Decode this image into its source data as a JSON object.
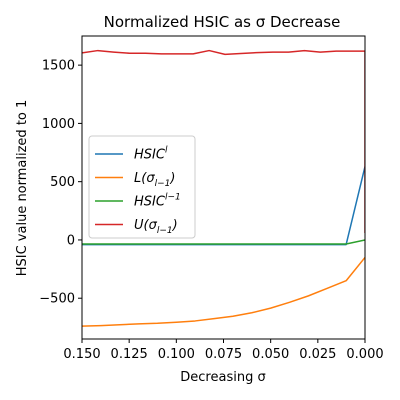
{
  "chart_data": {
    "type": "line",
    "title": "Normalized HSIC as σ Decrease",
    "xlabel": "Decreasing σ",
    "ylabel": "HSIC value normalized to 1",
    "xlim": [
      0.15,
      0.0
    ],
    "ylim": [
      -850,
      1750
    ],
    "x_reversed": true,
    "xticks": [
      0.15,
      0.125,
      0.1,
      0.075,
      0.05,
      0.025,
      0.0
    ],
    "xtick_labels": [
      "0.150",
      "0.125",
      "0.100",
      "0.075",
      "0.050",
      "0.025",
      "0.000"
    ],
    "yticks": [
      -500,
      0,
      500,
      1000,
      1500
    ],
    "ytick_labels": [
      "−500",
      "0",
      "500",
      "1000",
      "1500"
    ],
    "grid": false,
    "legend_position": "center-left",
    "series": [
      {
        "name": "HSIC^l",
        "legend_main": "HSIC",
        "legend_sup": "l",
        "legend_sub": "",
        "legend_after": "",
        "color": "#1f77b4",
        "x": [
          0.15,
          0.14,
          0.13,
          0.12,
          0.11,
          0.1,
          0.09,
          0.08,
          0.07,
          0.06,
          0.05,
          0.04,
          0.03,
          0.02,
          0.01,
          0.0
        ],
        "y": [
          -40,
          -40,
          -40,
          -40,
          -40,
          -40,
          -40,
          -40,
          -40,
          -40,
          -40,
          -40,
          -40,
          -40,
          -40,
          630
        ]
      },
      {
        "name": "L(σ_{l−1})",
        "legend_main": "L(σ",
        "legend_sup": "",
        "legend_sub": "l−1",
        "legend_after": ")",
        "color": "#ff7f0e",
        "x": [
          0.15,
          0.14,
          0.13,
          0.12,
          0.11,
          0.1,
          0.09,
          0.08,
          0.07,
          0.06,
          0.05,
          0.04,
          0.03,
          0.02,
          0.01,
          0.0
        ],
        "y": [
          -740,
          -735,
          -728,
          -720,
          -715,
          -706,
          -695,
          -675,
          -655,
          -625,
          -585,
          -535,
          -480,
          -415,
          -350,
          -150
        ]
      },
      {
        "name": "HSIC^{l−1}",
        "legend_main": "HSIC",
        "legend_sup": "l−1",
        "legend_sub": "",
        "legend_after": "",
        "color": "#2ca02c",
        "x": [
          0.15,
          0.14,
          0.13,
          0.12,
          0.11,
          0.1,
          0.09,
          0.08,
          0.07,
          0.06,
          0.05,
          0.04,
          0.03,
          0.02,
          0.01,
          0.0
        ],
        "y": [
          -35,
          -35,
          -35,
          -35,
          -35,
          -35,
          -35,
          -35,
          -35,
          -35,
          -35,
          -35,
          -35,
          -35,
          -35,
          0
        ]
      },
      {
        "name": "U(σ_{l−1})",
        "legend_main": "U(σ",
        "legend_sup": "",
        "legend_sub": "l−1",
        "legend_after": ")",
        "color": "#d62728",
        "x": [
          0.15,
          0.1416,
          0.1332,
          0.1248,
          0.1163,
          0.1079,
          0.0995,
          0.0911,
          0.0826,
          0.0742,
          0.0658,
          0.0574,
          0.0489,
          0.0405,
          0.0321,
          0.0237,
          0.0153,
          0.0,
          0.0
        ],
        "y": [
          1605,
          1625,
          1612,
          1602,
          1602,
          1597,
          1597,
          1597,
          1625,
          1592,
          1600,
          1607,
          1612,
          1612,
          1625,
          1612,
          1620,
          1620,
          60
        ]
      }
    ]
  }
}
